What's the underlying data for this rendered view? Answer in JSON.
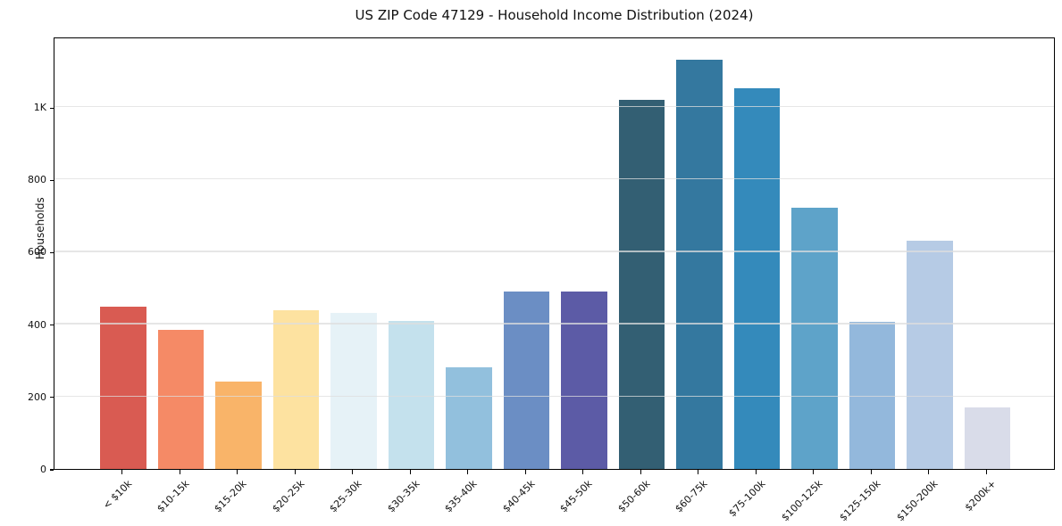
{
  "chart_data": {
    "type": "bar",
    "title": "US ZIP Code 47129 - Household Income Distribution (2024)",
    "xlabel": "",
    "ylabel": "Households",
    "categories": [
      "< $10k",
      "$10-15k",
      "$15-20k",
      "$20-25k",
      "$25-30k",
      "$30-35k",
      "$35-40k",
      "$40-45k",
      "$45-50k",
      "$50-60k",
      "$60-75k",
      "$75-100k",
      "$100-125k",
      "$125-150k",
      "$150-200k",
      "$200k+"
    ],
    "values": [
      448,
      385,
      242,
      439,
      432,
      408,
      282,
      490,
      491,
      1019,
      1132,
      1051,
      721,
      406,
      632,
      170
    ],
    "bar_colors": [
      "#d95b52",
      "#f58a66",
      "#f9b469",
      "#fde2a0",
      "#e6f2f7",
      "#c4e1ed",
      "#92c0dd",
      "#6b8ec4",
      "#5c5ba6",
      "#335f73",
      "#34789f",
      "#348abb",
      "#5ea3c9",
      "#93b8dc",
      "#b6cbe5",
      "#d9dce9"
    ],
    "ylim": [
      0,
      1195
    ],
    "yticks": [
      {
        "value": 0,
        "label": "0"
      },
      {
        "value": 200,
        "label": "200"
      },
      {
        "value": 400,
        "label": "400"
      },
      {
        "value": 600,
        "label": "600"
      },
      {
        "value": 800,
        "label": "800"
      },
      {
        "value": 1000,
        "label": "1K"
      }
    ],
    "grid": "horizontal",
    "legend": "none",
    "x_tick_rotation": 45
  }
}
